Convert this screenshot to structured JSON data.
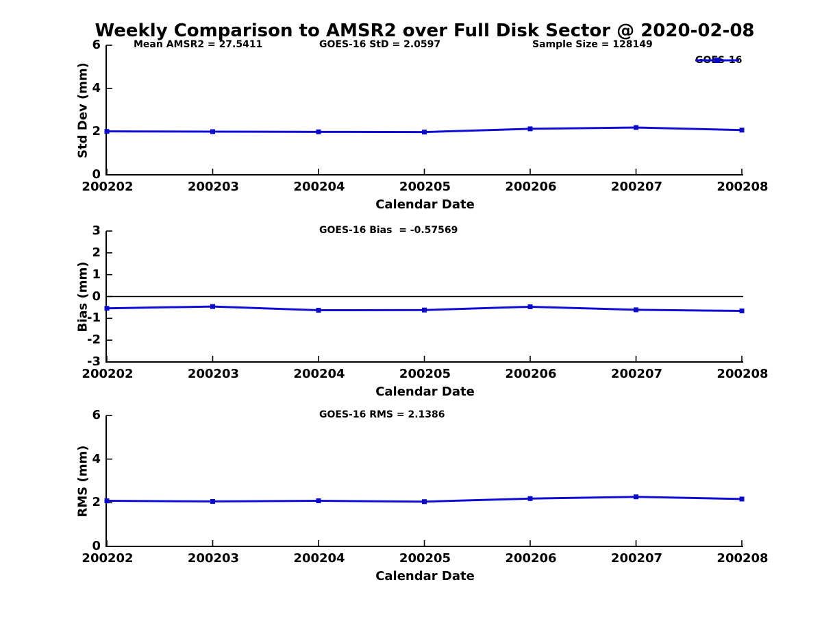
{
  "page": {
    "title": "Weekly Comparison to AMSR2 over Full Disk Sector @ 2020-02-08"
  },
  "colors": {
    "line": "#0d0dd6",
    "marker": "#0a0ac8",
    "axis": "#000000",
    "zero_line": "#000000",
    "background": "#ffffff"
  },
  "legend": {
    "label": "GOES-16",
    "position": "top-right"
  },
  "chart_data": [
    {
      "id": "std-dev",
      "type": "line",
      "xlabel": "Calendar Date",
      "ylabel": "Std Dev (mm)",
      "categories": [
        "200202",
        "200203",
        "200204",
        "200205",
        "200206",
        "200207",
        "200208"
      ],
      "series": [
        {
          "name": "GOES-16",
          "values": [
            2.01,
            2.0,
            1.99,
            1.98,
            2.13,
            2.19,
            2.07
          ]
        }
      ],
      "ylim": [
        0,
        6
      ],
      "yticks": [
        0,
        2,
        4,
        6
      ],
      "grid": false,
      "zero_line": false,
      "annotations": [
        "Mean AMSR2 = 27.5411",
        "GOES-16 StD = 2.0597",
        "Sample Size = 128149"
      ],
      "legend_entries": [
        "GOES-16"
      ]
    },
    {
      "id": "bias",
      "type": "line",
      "xlabel": "Calendar Date",
      "ylabel": "Bias (mm)",
      "categories": [
        "200202",
        "200203",
        "200204",
        "200205",
        "200206",
        "200207",
        "200208"
      ],
      "series": [
        {
          "name": "GOES-16",
          "values": [
            -0.54,
            -0.46,
            -0.63,
            -0.62,
            -0.47,
            -0.61,
            -0.66
          ]
        }
      ],
      "ylim": [
        -3,
        3
      ],
      "yticks": [
        3,
        2,
        1,
        0,
        -1,
        -2,
        -3
      ],
      "grid": false,
      "zero_line": true,
      "annotations": [
        "GOES-16 Bias  = -0.57569"
      ],
      "legend_entries": []
    },
    {
      "id": "rms",
      "type": "line",
      "xlabel": "Calendar Date",
      "ylabel": "RMS (mm)",
      "categories": [
        "200202",
        "200203",
        "200204",
        "200205",
        "200206",
        "200207",
        "200208"
      ],
      "series": [
        {
          "name": "GOES-16",
          "values": [
            2.09,
            2.06,
            2.09,
            2.05,
            2.19,
            2.27,
            2.17
          ]
        }
      ],
      "ylim": [
        0,
        6
      ],
      "yticks": [
        0,
        2,
        4,
        6
      ],
      "grid": false,
      "zero_line": false,
      "annotations": [
        "GOES-16 RMS = 2.1386"
      ],
      "legend_entries": []
    }
  ]
}
